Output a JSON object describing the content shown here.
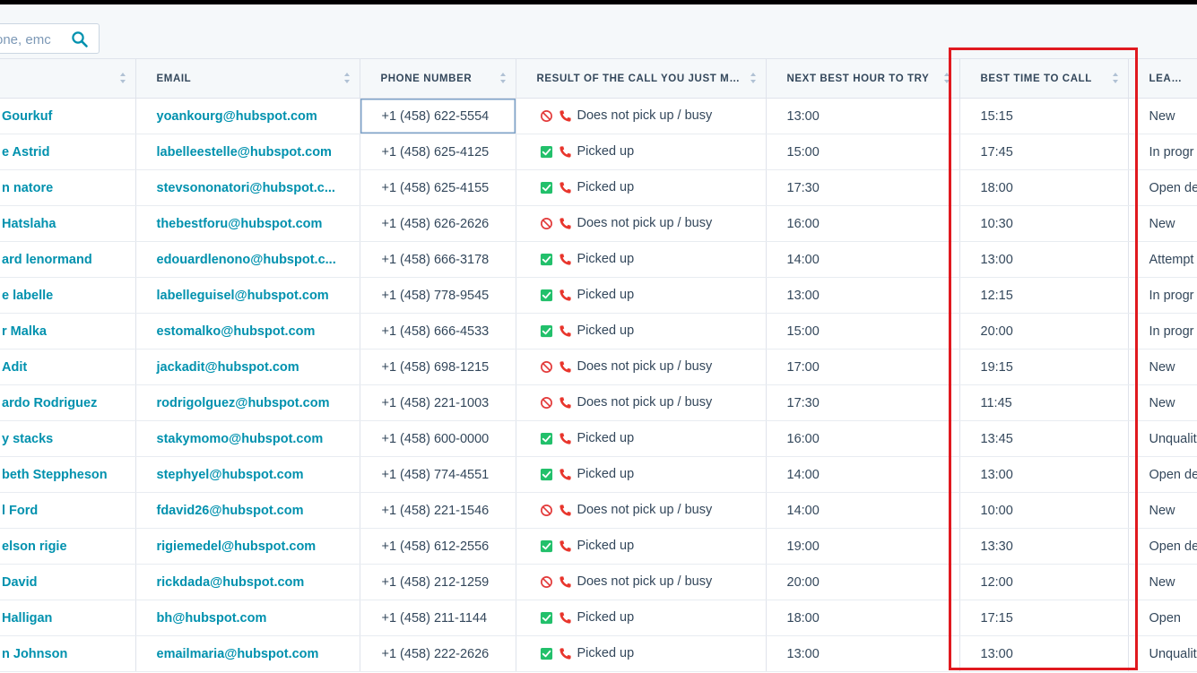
{
  "search": {
    "placeholder": "one, emc"
  },
  "columns": [
    {
      "label": ""
    },
    {
      "label": "EMAIL"
    },
    {
      "label": "PHONE NUMBER"
    },
    {
      "label": "RESULT OF THE CALL YOU JUST MA..."
    },
    {
      "label": "NEXT BEST HOUR TO TRY"
    },
    {
      "label": "BEST TIME TO CALL"
    },
    {
      "label": "LEAD STA"
    }
  ],
  "rows": [
    {
      "name": "Gourkuf",
      "email": "yoankourg@hubspot.com",
      "phone": "+1 (458) 622-5554",
      "result": "Does not pick up / busy",
      "result_icon": "no-entry-icon",
      "next_hour": "13:00",
      "best_time": "15:15",
      "lead_status": "New"
    },
    {
      "name": "e Astrid",
      "email": "labelleestelle@hubspot.com",
      "phone": "+1 (458) 625-4125",
      "result": "Picked up",
      "result_icon": "checkbox-icon",
      "next_hour": "15:00",
      "best_time": "17:45",
      "lead_status": "In progr"
    },
    {
      "name": "n natore",
      "email": "stevsononatori@hubspot.c...",
      "phone": "+1 (458) 625-4155",
      "result": "Picked up",
      "result_icon": "checkbox-icon",
      "next_hour": "17:30",
      "best_time": "18:00",
      "lead_status": "Open de"
    },
    {
      "name": "Hatslaha",
      "email": "thebestforu@hubspot.com",
      "phone": "+1 (458) 626-2626",
      "result": "Does not pick up / busy",
      "result_icon": "no-entry-icon",
      "next_hour": "16:00",
      "best_time": "10:30",
      "lead_status": "New"
    },
    {
      "name": "ard lenormand",
      "email": "edouardlenono@hubspot.c...",
      "phone": "+1 (458) 666-3178",
      "result": "Picked up",
      "result_icon": "checkbox-icon",
      "next_hour": "14:00",
      "best_time": "13:00",
      "lead_status": "Attempt"
    },
    {
      "name": "e labelle",
      "email": "labelleguisel@hubspot.com",
      "phone": "+1 (458) 778-9545",
      "result": "Picked up",
      "result_icon": "checkbox-icon",
      "next_hour": "13:00",
      "best_time": "12:15",
      "lead_status": "In progr"
    },
    {
      "name": "r Malka",
      "email": "estomalko@hubspot.com",
      "phone": "+1 (458) 666-4533",
      "result": "Picked up",
      "result_icon": "checkbox-icon",
      "next_hour": "15:00",
      "best_time": "20:00",
      "lead_status": "In progr"
    },
    {
      "name": "Adit",
      "email": "jackadit@hubspot.com",
      "phone": "+1 (458) 698-1215",
      "result": "Does not pick up / busy",
      "result_icon": "no-entry-icon",
      "next_hour": "17:00",
      "best_time": "19:15",
      "lead_status": "New"
    },
    {
      "name": "ardo Rodriguez",
      "email": "rodrigolguez@hubspot.com",
      "phone": "+1 (458) 221-1003",
      "result": "Does not pick up / busy",
      "result_icon": "no-entry-icon",
      "next_hour": "17:30",
      "best_time": "11:45",
      "lead_status": "New"
    },
    {
      "name": "y stacks",
      "email": "stakymomo@hubspot.com",
      "phone": "+1 (458) 600-0000",
      "result": "Picked up",
      "result_icon": "checkbox-icon",
      "next_hour": "16:00",
      "best_time": "13:45",
      "lead_status": "Unqualit"
    },
    {
      "name": "beth Steppheson",
      "email": "stephyel@hubspot.com",
      "phone": "+1 (458) 774-4551",
      "result": "Picked up",
      "result_icon": "checkbox-icon",
      "next_hour": "14:00",
      "best_time": "13:00",
      "lead_status": "Open de"
    },
    {
      "name": "l Ford",
      "email": "fdavid26@hubspot.com",
      "phone": "+1 (458) 221-1546",
      "result": "Does not pick up / busy",
      "result_icon": "no-entry-icon",
      "next_hour": "14:00",
      "best_time": "10:00",
      "lead_status": "New"
    },
    {
      "name": "elson rigie",
      "email": "rigiemedel@hubspot.com",
      "phone": "+1 (458) 612-2556",
      "result": "Picked up",
      "result_icon": "checkbox-icon",
      "next_hour": "19:00",
      "best_time": "13:30",
      "lead_status": "Open de"
    },
    {
      "name": "David",
      "email": "rickdada@hubspot.com",
      "phone": "+1 (458) 212-1259",
      "result": "Does not pick up / busy",
      "result_icon": "no-entry-icon",
      "next_hour": "20:00",
      "best_time": "12:00",
      "lead_status": "New"
    },
    {
      "name": "Halligan",
      "email": "bh@hubspot.com",
      "phone": "+1 (458) 211-1144",
      "result": "Picked up",
      "result_icon": "checkbox-icon",
      "next_hour": "18:00",
      "best_time": "17:15",
      "lead_status": "Open"
    },
    {
      "name": "n Johnson",
      "email": "emailmaria@hubspot.com",
      "phone": "+1 (458) 222-2626",
      "result": "Picked up",
      "result_icon": "checkbox-icon",
      "next_hour": "13:00",
      "best_time": "13:00",
      "lead_status": "Unqualit"
    }
  ],
  "selected_cell": {
    "row": 0,
    "column": "phone"
  },
  "colors": {
    "link": "#0091ae",
    "text": "#33475b",
    "header_bg": "#f5f8fa",
    "border": "#dfe3eb",
    "highlight": "#e0191f",
    "check": "#22c06b",
    "phone_icon": "#e8352c",
    "no_entry": "#e33b3b"
  }
}
